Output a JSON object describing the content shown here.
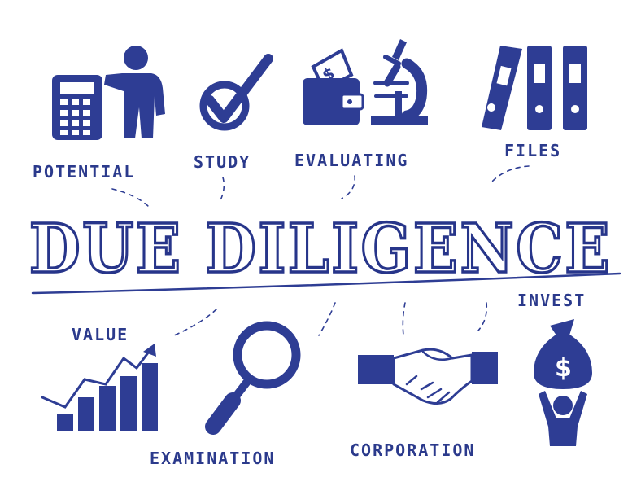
{
  "title": "DUE DILIGENCE",
  "labels": {
    "potential": "POTENTIAL",
    "study": "STUDY",
    "evaluating": "EVALUATING",
    "files": "FILES",
    "invest": "INVEST",
    "value": "VALUE",
    "examination": "EXAMINATION",
    "corporation": "CORPORATION"
  },
  "icons": {
    "wallet_symbol": "$",
    "moneybag_symbol": "$"
  },
  "colors": {
    "ink": "#2e3d94",
    "background": "#ffffff"
  }
}
